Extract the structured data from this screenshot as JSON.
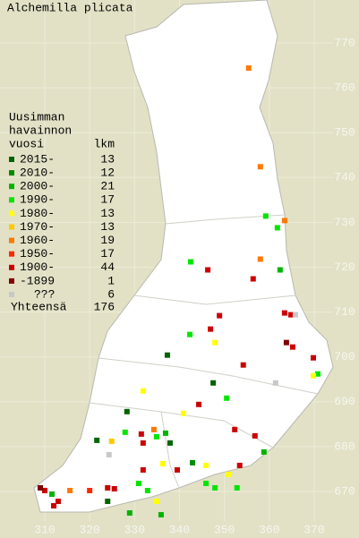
{
  "map": {
    "title": "Alchemilla plicata",
    "legend_title": [
      "Uusimman",
      "havainnon",
      "vuosi"
    ],
    "count_header": "lkm",
    "legend": [
      {
        "label": "2015-",
        "count": 13,
        "color": "#006400"
      },
      {
        "label": "2010-",
        "count": 12,
        "color": "#008c00"
      },
      {
        "label": "2000-",
        "count": 21,
        "color": "#00b400"
      },
      {
        "label": "1990-",
        "count": 17,
        "color": "#00e600"
      },
      {
        "label": "1980-",
        "count": 13,
        "color": "#ffff00"
      },
      {
        "label": "1970-",
        "count": 13,
        "color": "#ffc800"
      },
      {
        "label": "1960-",
        "count": 19,
        "color": "#ff7800"
      },
      {
        "label": "1950-",
        "count": 17,
        "color": "#ff2800"
      },
      {
        "label": "1900-",
        "count": 44,
        "color": "#cc0000"
      },
      {
        "label": "-1899",
        "count": 1,
        "color": "#800000"
      },
      {
        "label": "???",
        "count": 6,
        "color": "#c8c8c8"
      }
    ],
    "total_label": "Yhteensä",
    "total": 176,
    "xlim": [
      310,
      370
    ],
    "ylim": [
      670,
      770
    ],
    "xticks": [
      310,
      320,
      330,
      340,
      350,
      360,
      370
    ],
    "yticks": [
      670,
      680,
      690,
      700,
      710,
      720,
      730,
      740,
      750,
      760,
      770
    ],
    "points": [
      [
        355.4,
        764.4,
        6
      ],
      [
        358.0,
        742.4,
        6
      ],
      [
        359.2,
        731.4,
        3
      ],
      [
        363.4,
        730.4,
        6
      ],
      [
        361.8,
        728.8,
        3
      ],
      [
        342.5,
        721.2,
        3
      ],
      [
        346.3,
        719.4,
        8
      ],
      [
        358.0,
        721.8,
        6
      ],
      [
        362.4,
        719.4,
        2
      ],
      [
        356.4,
        717.4,
        8
      ],
      [
        348.9,
        709.2,
        8
      ],
      [
        342.3,
        705.0,
        3
      ],
      [
        346.9,
        706.2,
        8
      ],
      [
        347.9,
        703.2,
        4
      ],
      [
        363.4,
        709.8,
        8
      ],
      [
        364.8,
        709.4,
        8
      ],
      [
        365.8,
        709.4,
        10
      ],
      [
        363.8,
        703.2,
        9
      ],
      [
        365.2,
        702.2,
        8
      ],
      [
        369.8,
        699.8,
        8
      ],
      [
        370.8,
        696.2,
        3
      ],
      [
        369.8,
        695.8,
        4
      ],
      [
        337.3,
        700.4,
        0
      ],
      [
        354.2,
        698.2,
        8
      ],
      [
        347.5,
        694.2,
        0
      ],
      [
        361.4,
        694.2,
        10
      ],
      [
        331.9,
        692.4,
        4
      ],
      [
        328.3,
        687.8,
        0
      ],
      [
        327.9,
        683.2,
        3
      ],
      [
        331.5,
        682.8,
        8
      ],
      [
        334.3,
        683.8,
        6
      ],
      [
        334.9,
        682.2,
        3
      ],
      [
        336.9,
        683.0,
        2
      ],
      [
        337.9,
        680.8,
        0
      ],
      [
        331.9,
        680.8,
        8
      ],
      [
        324.9,
        681.2,
        5
      ],
      [
        321.6,
        681.4,
        0
      ],
      [
        324.3,
        678.2,
        10
      ],
      [
        336.3,
        676.2,
        4
      ],
      [
        340.9,
        687.4,
        4
      ],
      [
        344.3,
        689.4,
        8
      ],
      [
        350.5,
        690.8,
        3
      ],
      [
        352.3,
        683.8,
        8
      ],
      [
        356.8,
        682.4,
        8
      ],
      [
        358.8,
        678.8,
        2
      ],
      [
        353.4,
        675.8,
        8
      ],
      [
        350.9,
        673.8,
        4
      ],
      [
        345.9,
        675.8,
        4
      ],
      [
        342.9,
        676.4,
        1
      ],
      [
        339.5,
        674.8,
        8
      ],
      [
        331.9,
        674.8,
        8
      ],
      [
        330.9,
        671.8,
        3
      ],
      [
        332.9,
        670.2,
        3
      ],
      [
        334.9,
        667.8,
        4
      ],
      [
        335.9,
        664.8,
        2
      ],
      [
        328.9,
        665.2,
        2
      ],
      [
        324.0,
        670.8,
        8
      ],
      [
        325.5,
        670.6,
        8
      ],
      [
        320.0,
        670.2,
        7
      ],
      [
        315.6,
        670.2,
        6
      ],
      [
        310.0,
        670.2,
        8
      ],
      [
        311.6,
        669.4,
        2
      ],
      [
        313.0,
        667.8,
        8
      ],
      [
        309.0,
        670.8,
        9
      ],
      [
        312.0,
        666.8,
        8
      ],
      [
        345.9,
        671.8,
        3
      ],
      [
        347.9,
        670.8,
        3
      ],
      [
        352.8,
        670.8,
        3
      ],
      [
        324.0,
        667.8,
        0
      ]
    ]
  }
}
